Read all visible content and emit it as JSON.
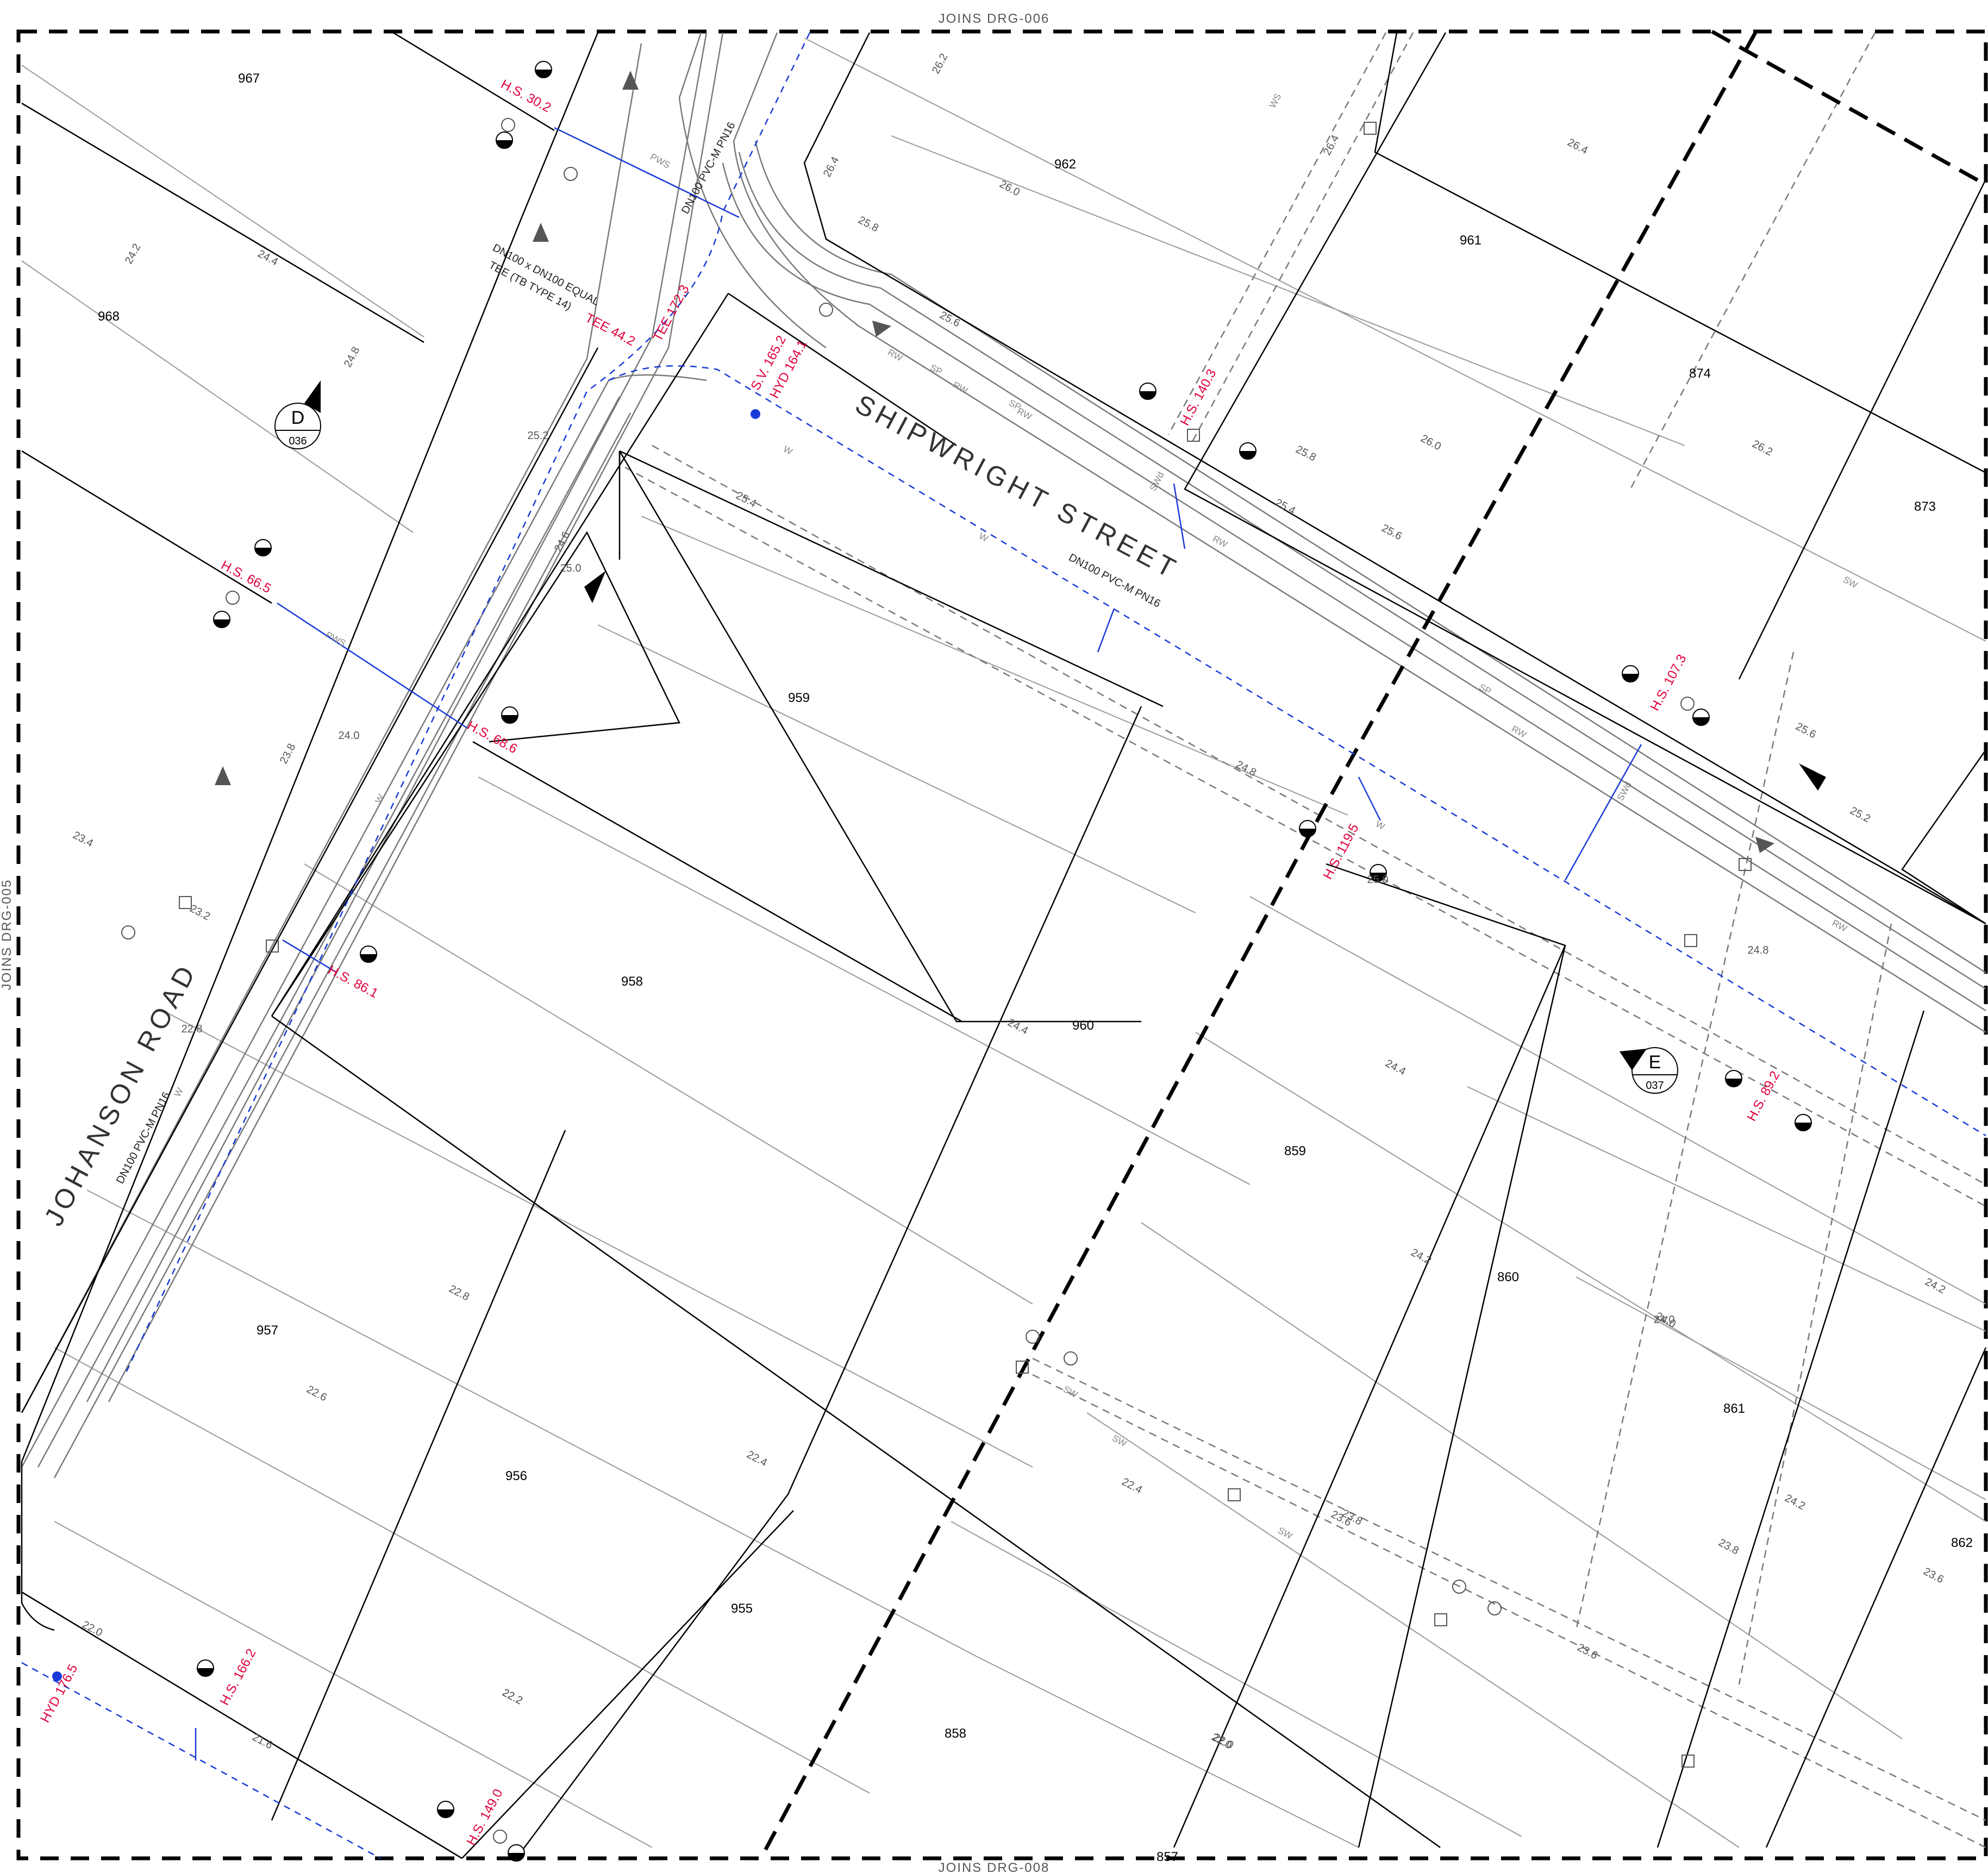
{
  "edge_labels": {
    "top": "JOINS DRG-006",
    "bottom": "JOINS DRG-008",
    "left": "JOINS DRG-005"
  },
  "streets": {
    "shipwright": "SHIPWRIGHT STREET",
    "johanson": "JOHANSON ROAD"
  },
  "pipe_notes": {
    "shipwright_main": "DN100 PVC-M PN16",
    "johanson_main": "DN100 PVC-M PN16",
    "north_main": "DN100 PVC-M PN16",
    "tee_1": "DN100 x DN100 EQUAL",
    "tee_2": "TEE (TB TYPE 14)"
  },
  "lots": [
    "967",
    "968",
    "962",
    "961",
    "874",
    "873",
    "959",
    "958",
    "960",
    "859",
    "860",
    "861",
    "862",
    "957",
    "956",
    "955",
    "858",
    "857"
  ],
  "chainages": [
    "H.S. 30.2",
    "H.S. 66.5",
    "H.S. 68.6",
    "H.S. 86.1",
    "TEE 44.2",
    "TEE 172.3",
    "S.V. 165.2",
    "HYD 164.1",
    "H.S. 140.3",
    "H.S. 107.3",
    "H.S. 119.5",
    "H.S. 89.2",
    "H.S. 166.2",
    "H.S. 149.0",
    "HYD 176.5"
  ],
  "contours": [
    "26.2",
    "26.4",
    "26.0",
    "25.8",
    "25.6",
    "24.2",
    "24.4",
    "25.2",
    "24.8",
    "25.4",
    "25.0",
    "24.6",
    "24.0",
    "23.8",
    "23.4",
    "22.8",
    "23.2",
    "26.4",
    "26.4",
    "26.0",
    "25.8",
    "26.2",
    "25.6",
    "25.4",
    "25.6",
    "25.2",
    "24.8",
    "25.0",
    "24.4",
    "24.2",
    "24.0",
    "23.8",
    "23.6",
    "22.6",
    "22.8",
    "22.4",
    "22.2",
    "22.0",
    "21.6",
    "22.0",
    "24.8",
    "24.4",
    "24.2",
    "24.0",
    "23.8",
    "23.6",
    "22.4",
    "22.2",
    "22.0",
    "23.6",
    "24.2"
  ],
  "section_markers": [
    {
      "letter": "D",
      "sheet": "036"
    },
    {
      "letter": "E",
      "sheet": "037"
    }
  ],
  "service_codes": [
    "PWS",
    "RW",
    "SP",
    "SW",
    "WS",
    "SWd",
    "W"
  ],
  "colors": {
    "water_main": "#1a3bd8",
    "chainage": "#e0003a",
    "boundary": "#000000",
    "contour": "#8a8a8a",
    "services": "#9a9a9a"
  }
}
